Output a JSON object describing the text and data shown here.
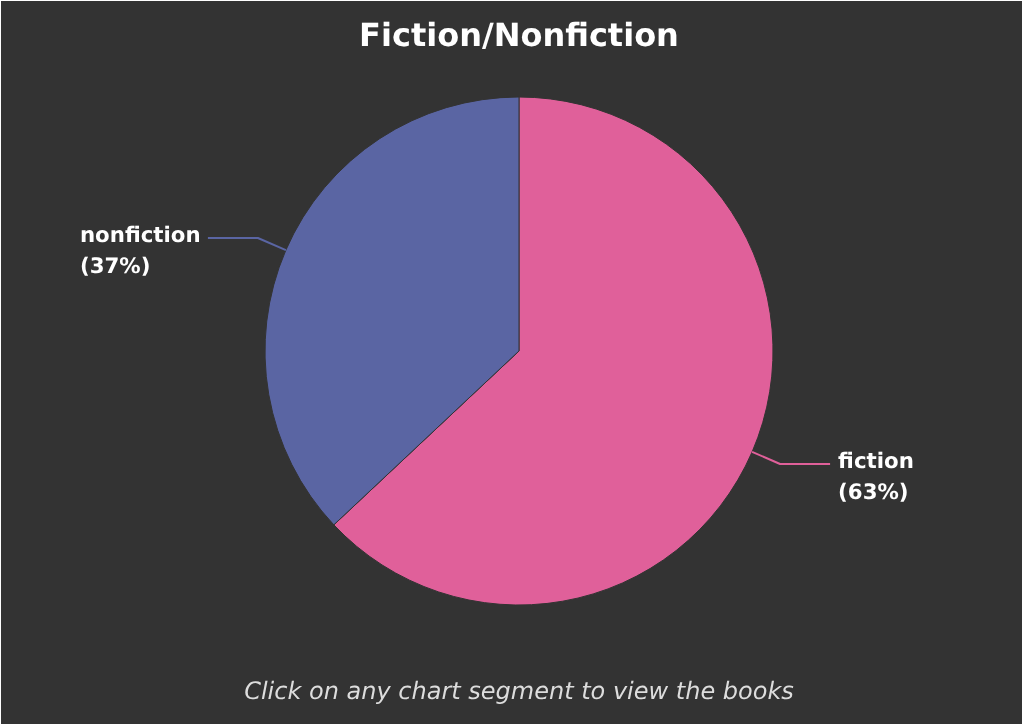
{
  "chart_data": {
    "type": "pie",
    "title": "Fiction/Nonfiction",
    "categories": [
      "fiction",
      "nonfiction"
    ],
    "values": [
      63,
      37
    ],
    "colors": [
      "#e0609a",
      "#5a65a3"
    ],
    "value_labels": [
      "(63%)",
      "(37%)"
    ],
    "annotations": [
      "Click on any chart segment to view the books"
    ]
  }
}
